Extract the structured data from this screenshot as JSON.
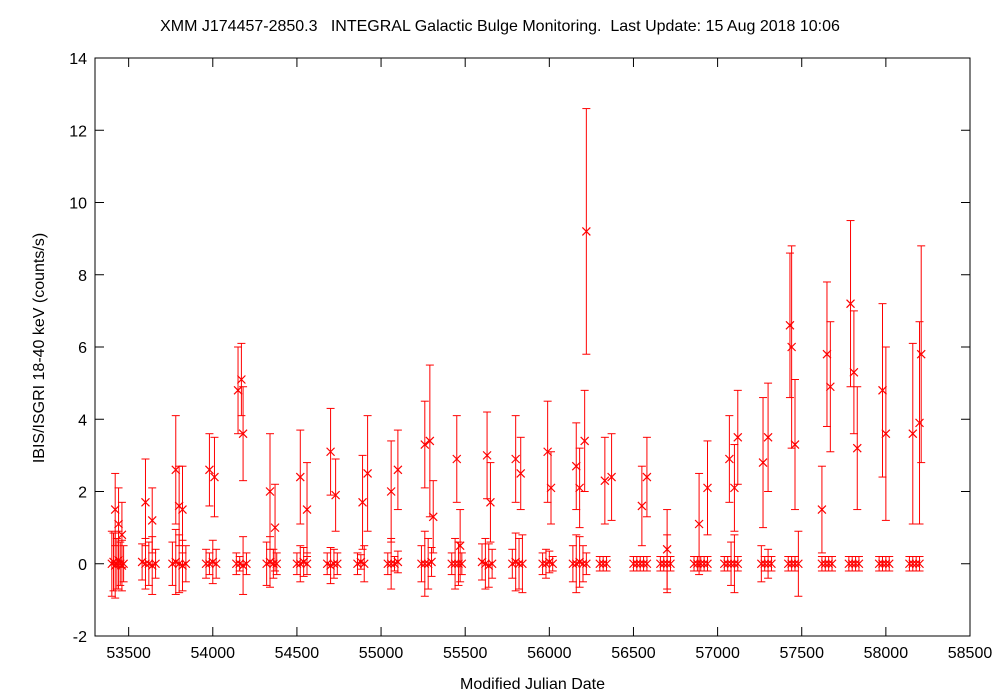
{
  "chart_data": {
    "type": "scatter",
    "title": "XMM J174457-2850.3   INTEGRAL Galactic Bulge Monitoring.  Last Update: 15 Aug 2018 10:06",
    "xlabel": "Modified Julian Date",
    "ylabel": "IBIS/ISGRI 18-40 keV (counts/s)",
    "xlim": [
      53300,
      58500
    ],
    "ylim": [
      -2,
      14
    ],
    "xticks": [
      53500,
      54000,
      54500,
      55000,
      55500,
      56000,
      56500,
      57000,
      57500,
      58000,
      58500
    ],
    "yticks": [
      -2,
      0,
      2,
      4,
      6,
      8,
      10,
      12,
      14
    ],
    "grid": false,
    "marker": "x",
    "color": "#ff0000",
    "series": [
      {
        "x": [
          53420,
          53440,
          53460,
          53600,
          53640,
          53780,
          53800,
          53820,
          53980,
          54010,
          54150,
          54170,
          54180,
          54340,
          54370,
          54520,
          54560,
          54700,
          54730,
          54890,
          54920,
          55060,
          55100,
          55260,
          55290,
          55310,
          55450,
          55470,
          55630,
          55650,
          55800,
          55830,
          55990,
          56010,
          56160,
          56180,
          56210,
          56220,
          56330,
          56370,
          56550,
          56580,
          56700,
          56890,
          56940,
          57070,
          57100,
          57120,
          57270,
          57300,
          57430,
          57440,
          57460,
          57620,
          57650,
          57670,
          57790,
          57810,
          57830,
          57980,
          58000,
          58160,
          58200,
          58210
        ],
        "y": [
          1.5,
          1.1,
          0.8,
          1.7,
          1.2,
          2.6,
          1.6,
          1.5,
          2.6,
          2.4,
          4.8,
          5.1,
          3.6,
          2.0,
          1.0,
          2.4,
          1.5,
          3.1,
          1.9,
          1.7,
          2.5,
          2.0,
          2.6,
          3.3,
          3.4,
          1.3,
          2.9,
          0.5,
          3.0,
          1.7,
          2.9,
          2.5,
          3.1,
          2.1,
          2.7,
          2.1,
          3.4,
          9.2,
          2.3,
          2.4,
          1.6,
          2.4,
          0.4,
          1.1,
          2.1,
          2.9,
          2.1,
          3.5,
          2.8,
          3.5,
          6.6,
          6.0,
          3.3,
          1.5,
          5.8,
          4.9,
          7.2,
          5.3,
          3.2,
          4.8,
          3.6,
          3.6,
          3.9,
          5.8
        ],
        "err": [
          1.0,
          1.0,
          0.9,
          1.2,
          0.9,
          1.5,
          1.1,
          1.2,
          1.0,
          1.1,
          1.2,
          1.0,
          1.3,
          1.6,
          1.2,
          1.3,
          1.3,
          1.2,
          1.0,
          1.3,
          1.6,
          1.4,
          1.1,
          1.2,
          2.1,
          1.0,
          1.2,
          1.0,
          1.2,
          1.1,
          1.2,
          1.0,
          1.4,
          1.0,
          1.2,
          1.1,
          1.4,
          3.4,
          1.2,
          1.2,
          1.1,
          1.1,
          1.1,
          1.4,
          1.3,
          1.2,
          1.2,
          1.3,
          1.8,
          1.5,
          2.0,
          2.8,
          1.8,
          1.2,
          2.0,
          1.8,
          2.3,
          1.7,
          1.7,
          2.4,
          2.4,
          2.5,
          2.8,
          3.0
        ]
      },
      {
        "x": [
          53400,
          53410,
          53420,
          53430,
          53440,
          53450,
          53460,
          53470,
          53580,
          53600,
          53620,
          53640,
          53660,
          53760,
          53780,
          53800,
          53820,
          53840,
          53960,
          53980,
          54000,
          54020,
          54140,
          54160,
          54180,
          54200,
          54320,
          54340,
          54360,
          54380,
          54500,
          54520,
          54540,
          54560,
          54680,
          54700,
          54720,
          54740,
          54860,
          54880,
          54900,
          55040,
          55060,
          55080,
          55100,
          55240,
          55260,
          55280,
          55300,
          55420,
          55440,
          55460,
          55480,
          55600,
          55620,
          55640,
          55660,
          55780,
          55800,
          55820,
          55840,
          55960,
          55980,
          56000,
          56020,
          56140,
          56160,
          56180,
          56200,
          56220,
          56300,
          56320,
          56340,
          56500,
          56520,
          56540,
          56560,
          56580,
          56660,
          56680,
          56700,
          56720,
          56860,
          56880,
          56900,
          56920,
          56940,
          57040,
          57060,
          57080,
          57100,
          57120,
          57260,
          57280,
          57300,
          57320,
          57420,
          57440,
          57460,
          57480,
          57620,
          57640,
          57660,
          57680,
          57780,
          57800,
          57820,
          57840,
          57960,
          57980,
          58000,
          58020,
          58140,
          58160,
          58180,
          58200
        ],
        "y": [
          0.0,
          0.05,
          -0.05,
          0.0,
          0.1,
          0.0,
          -0.05,
          0.0,
          0.05,
          0.0,
          0.0,
          -0.05,
          0.0,
          0.0,
          0.05,
          0.0,
          -0.05,
          0.0,
          0.0,
          0.0,
          0.05,
          0.0,
          0.0,
          0.0,
          -0.05,
          0.0,
          0.0,
          0.05,
          0.0,
          0.0,
          0.0,
          0.0,
          0.05,
          0.0,
          0.0,
          -0.05,
          0.0,
          0.0,
          0.0,
          0.05,
          0.0,
          0.0,
          0.0,
          0.0,
          0.05,
          0.0,
          0.0,
          0.0,
          0.05,
          0.0,
          0.0,
          0.0,
          0.0,
          0.05,
          0.0,
          -0.05,
          0.0,
          0.0,
          0.05,
          0.0,
          0.0,
          0.0,
          0.0,
          0.05,
          0.0,
          0.0,
          0.0,
          0.05,
          0.0,
          0.0,
          0.0,
          0.0,
          0.0,
          0.0,
          0.0,
          0.0,
          0.0,
          0.0,
          0.0,
          0.0,
          0.0,
          0.0,
          0.0,
          0.0,
          0.0,
          0.0,
          0.0,
          0.0,
          0.0,
          0.0,
          0.0,
          0.0,
          0.0,
          0.0,
          0.0,
          0.0,
          0.0,
          0.0,
          0.0,
          0.0,
          0.0,
          0.0,
          0.0,
          0.0,
          0.0,
          0.0,
          0.0,
          0.0,
          0.0,
          0.0,
          0.0,
          0.0,
          0.0,
          0.0,
          0.0,
          0.0
        ],
        "err": [
          0.9,
          0.8,
          0.9,
          0.7,
          0.8,
          0.6,
          0.7,
          0.5,
          0.5,
          0.7,
          0.6,
          0.8,
          0.4,
          0.6,
          0.9,
          0.8,
          0.7,
          0.5,
          0.4,
          0.3,
          0.6,
          0.4,
          0.3,
          0.2,
          0.8,
          0.3,
          0.6,
          0.7,
          0.4,
          0.3,
          0.3,
          0.5,
          0.4,
          0.3,
          0.3,
          0.5,
          0.4,
          0.3,
          0.3,
          0.2,
          0.5,
          0.3,
          0.7,
          0.2,
          0.3,
          0.5,
          0.9,
          0.7,
          0.4,
          0.3,
          0.7,
          0.6,
          0.3,
          0.5,
          0.7,
          0.6,
          0.4,
          0.4,
          0.8,
          0.7,
          0.8,
          0.3,
          0.4,
          0.3,
          0.2,
          0.5,
          0.8,
          0.7,
          0.5,
          0.3,
          0.2,
          0.2,
          0.2,
          0.2,
          0.2,
          0.2,
          0.2,
          0.2,
          0.2,
          0.2,
          0.8,
          0.2,
          0.2,
          0.2,
          0.2,
          0.2,
          0.2,
          0.2,
          0.2,
          0.6,
          0.8,
          0.2,
          0.5,
          0.2,
          0.4,
          0.2,
          0.2,
          0.2,
          0.2,
          0.9,
          0.2,
          0.2,
          0.2,
          0.2,
          0.2,
          0.2,
          0.2,
          0.2,
          0.2,
          0.2,
          0.2,
          0.2,
          0.2,
          0.2,
          0.2,
          0.2
        ]
      }
    ]
  }
}
